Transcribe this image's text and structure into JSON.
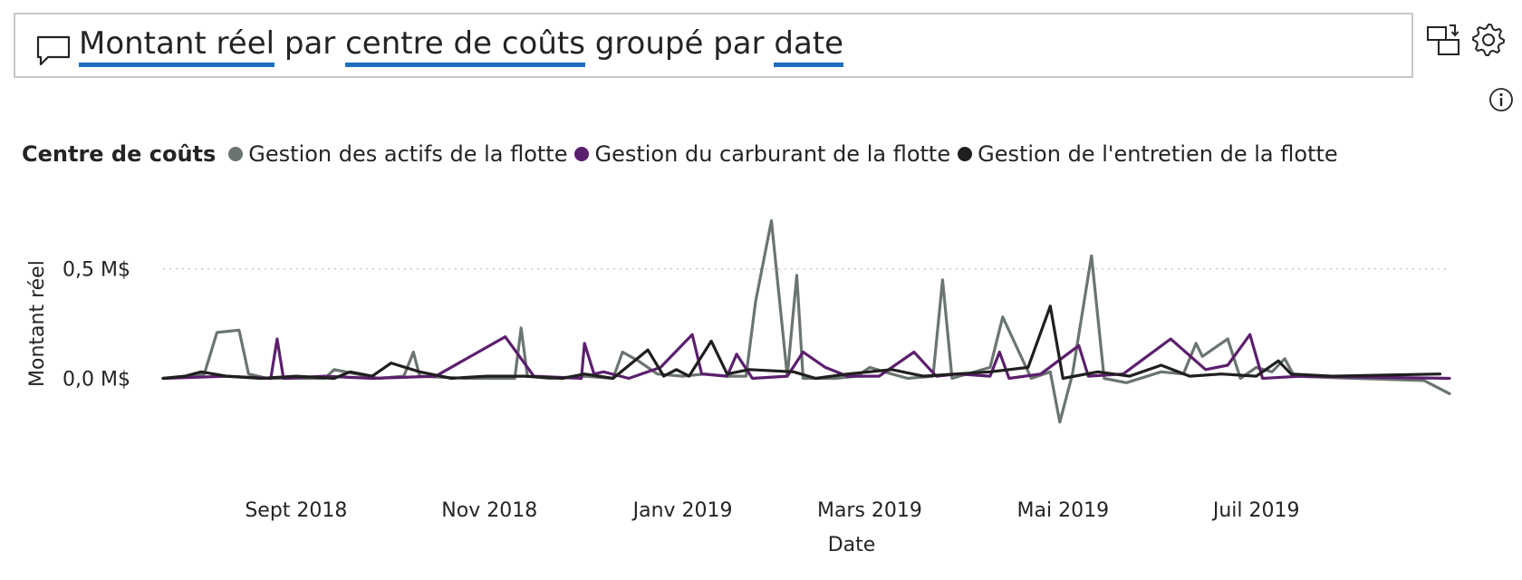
{
  "qa": {
    "segments": [
      {
        "text": "Montant réel",
        "keyword": true
      },
      {
        "text": " par ",
        "keyword": false
      },
      {
        "text": "centre de coûts",
        "keyword": true
      },
      {
        "text": " groupé par ",
        "keyword": false
      },
      {
        "text": "date",
        "keyword": true
      }
    ]
  },
  "icons": {
    "question": "speech-bubble-icon",
    "convert": "convert-visual-icon",
    "settings": "gear-icon",
    "info": "info-icon"
  },
  "colors": {
    "keyword_underline": "#1f6fbf",
    "series": [
      "#6b7570",
      "#5c1f6e",
      "#201f1f"
    ]
  },
  "legend": {
    "title": "Centre de coûts"
  },
  "chart_data": {
    "type": "line",
    "title": "",
    "xlabel": "Date",
    "ylabel": "Montant réel",
    "y_unit": "M$",
    "ylim": [
      -0.3,
      0.9
    ],
    "xlim": [
      "2018-07-21",
      "2019-08-31"
    ],
    "y_ticks": [
      {
        "value": 0.0,
        "label": "0,0 M$"
      },
      {
        "value": 0.5,
        "label": "0,5 M$"
      }
    ],
    "x_ticks": [
      {
        "value": "2018-09-01",
        "label": "Sept 2018"
      },
      {
        "value": "2018-11-01",
        "label": "Nov 2018"
      },
      {
        "value": "2019-01-01",
        "label": "Janv 2019"
      },
      {
        "value": "2019-03-01",
        "label": "Mars 2019"
      },
      {
        "value": "2019-05-01",
        "label": "Mai 2019"
      },
      {
        "value": "2019-07-01",
        "label": "Juil 2019"
      }
    ],
    "grid": "horizontal-dotted",
    "legend_position": "top-left",
    "series": [
      {
        "name": "Gestion des actifs de la flotte",
        "points": [
          [
            "2018-07-21",
            0.0
          ],
          [
            "2018-07-28",
            0.01
          ],
          [
            "2018-08-03",
            0.02
          ],
          [
            "2018-08-07",
            0.21
          ],
          [
            "2018-08-14",
            0.22
          ],
          [
            "2018-08-17",
            0.02
          ],
          [
            "2018-08-23",
            0.0
          ],
          [
            "2018-09-04",
            0.0
          ],
          [
            "2018-09-10",
            0.0
          ],
          [
            "2018-09-13",
            0.04
          ],
          [
            "2018-09-20",
            0.02
          ],
          [
            "2018-09-27",
            0.0
          ],
          [
            "2018-10-05",
            0.01
          ],
          [
            "2018-10-08",
            0.12
          ],
          [
            "2018-10-10",
            0.01
          ],
          [
            "2018-10-25",
            0.0
          ],
          [
            "2018-11-04",
            0.0
          ],
          [
            "2018-11-09",
            0.0
          ],
          [
            "2018-11-11",
            0.23
          ],
          [
            "2018-11-13",
            0.01
          ],
          [
            "2018-11-20",
            0.0
          ],
          [
            "2018-12-01",
            0.01
          ],
          [
            "2018-12-10",
            0.0
          ],
          [
            "2018-12-13",
            0.12
          ],
          [
            "2018-12-18",
            0.08
          ],
          [
            "2018-12-24",
            0.02
          ],
          [
            "2019-01-01",
            0.01
          ],
          [
            "2019-01-08",
            0.02
          ],
          [
            "2019-01-15",
            0.01
          ],
          [
            "2019-01-21",
            0.01
          ],
          [
            "2019-01-24",
            0.35
          ],
          [
            "2019-01-29",
            0.72
          ],
          [
            "2019-02-03",
            0.01
          ],
          [
            "2019-02-06",
            0.47
          ],
          [
            "2019-02-08",
            0.0
          ],
          [
            "2019-02-18",
            0.0
          ],
          [
            "2019-02-25",
            0.01
          ],
          [
            "2019-03-01",
            0.05
          ],
          [
            "2019-03-08",
            0.02
          ],
          [
            "2019-03-13",
            0.0
          ],
          [
            "2019-03-21",
            0.01
          ],
          [
            "2019-03-24",
            0.45
          ],
          [
            "2019-03-27",
            0.0
          ],
          [
            "2019-04-08",
            0.05
          ],
          [
            "2019-04-12",
            0.28
          ],
          [
            "2019-04-21",
            0.0
          ],
          [
            "2019-04-27",
            0.03
          ],
          [
            "2019-04-30",
            -0.2
          ],
          [
            "2019-05-04",
            0.02
          ],
          [
            "2019-05-10",
            0.56
          ],
          [
            "2019-05-14",
            0.0
          ],
          [
            "2019-05-21",
            -0.02
          ],
          [
            "2019-06-01",
            0.03
          ],
          [
            "2019-06-08",
            0.02
          ],
          [
            "2019-06-12",
            0.16
          ],
          [
            "2019-06-14",
            0.1
          ],
          [
            "2019-06-22",
            0.18
          ],
          [
            "2019-06-26",
            0.0
          ],
          [
            "2019-07-01",
            0.05
          ],
          [
            "2019-07-06",
            0.03
          ],
          [
            "2019-07-10",
            0.09
          ],
          [
            "2019-07-13",
            0.01
          ],
          [
            "2019-08-01",
            0.0
          ],
          [
            "2019-08-23",
            -0.01
          ],
          [
            "2019-08-31",
            -0.07
          ]
        ]
      },
      {
        "name": "Gestion du carburant de la flotte",
        "points": [
          [
            "2018-07-21",
            0.0
          ],
          [
            "2018-08-10",
            0.01
          ],
          [
            "2018-08-24",
            0.0
          ],
          [
            "2018-08-26",
            0.18
          ],
          [
            "2018-08-28",
            0.0
          ],
          [
            "2018-09-10",
            0.01
          ],
          [
            "2018-09-25",
            0.0
          ],
          [
            "2018-10-15",
            0.01
          ],
          [
            "2018-11-06",
            0.19
          ],
          [
            "2018-11-15",
            0.01
          ],
          [
            "2018-11-30",
            0.0
          ],
          [
            "2018-12-01",
            0.16
          ],
          [
            "2018-12-04",
            0.02
          ],
          [
            "2018-12-07",
            0.03
          ],
          [
            "2018-12-15",
            0.0
          ],
          [
            "2018-12-25",
            0.05
          ],
          [
            "2019-01-04",
            0.2
          ],
          [
            "2019-01-07",
            0.02
          ],
          [
            "2019-01-15",
            0.01
          ],
          [
            "2019-01-18",
            0.11
          ],
          [
            "2019-01-23",
            0.0
          ],
          [
            "2019-02-03",
            0.01
          ],
          [
            "2019-02-08",
            0.12
          ],
          [
            "2019-02-15",
            0.05
          ],
          [
            "2019-02-22",
            0.01
          ],
          [
            "2019-03-04",
            0.01
          ],
          [
            "2019-03-15",
            0.12
          ],
          [
            "2019-03-22",
            0.01
          ],
          [
            "2019-03-29",
            0.02
          ],
          [
            "2019-04-08",
            0.01
          ],
          [
            "2019-04-11",
            0.12
          ],
          [
            "2019-04-14",
            0.0
          ],
          [
            "2019-04-24",
            0.02
          ],
          [
            "2019-05-06",
            0.15
          ],
          [
            "2019-05-09",
            0.01
          ],
          [
            "2019-05-20",
            0.02
          ],
          [
            "2019-06-04",
            0.18
          ],
          [
            "2019-06-15",
            0.04
          ],
          [
            "2019-06-22",
            0.06
          ],
          [
            "2019-06-29",
            0.2
          ],
          [
            "2019-07-03",
            0.0
          ],
          [
            "2019-07-15",
            0.01
          ],
          [
            "2019-08-31",
            0.0
          ]
        ]
      },
      {
        "name": "Gestion de l'entretien de la flotte",
        "points": [
          [
            "2018-07-21",
            0.0
          ],
          [
            "2018-07-28",
            0.01
          ],
          [
            "2018-08-02",
            0.03
          ],
          [
            "2018-08-10",
            0.01
          ],
          [
            "2018-08-21",
            0.0
          ],
          [
            "2018-09-01",
            0.01
          ],
          [
            "2018-09-13",
            0.0
          ],
          [
            "2018-09-18",
            0.03
          ],
          [
            "2018-09-25",
            0.01
          ],
          [
            "2018-10-01",
            0.07
          ],
          [
            "2018-10-10",
            0.03
          ],
          [
            "2018-10-20",
            0.0
          ],
          [
            "2018-10-31",
            0.01
          ],
          [
            "2018-11-12",
            0.01
          ],
          [
            "2018-11-24",
            0.0
          ],
          [
            "2018-12-01",
            0.02
          ],
          [
            "2018-12-10",
            0.0
          ],
          [
            "2018-12-21",
            0.13
          ],
          [
            "2018-12-26",
            0.01
          ],
          [
            "2018-12-30",
            0.04
          ],
          [
            "2019-01-03",
            0.01
          ],
          [
            "2019-01-10",
            0.17
          ],
          [
            "2019-01-15",
            0.02
          ],
          [
            "2019-01-22",
            0.04
          ],
          [
            "2019-02-05",
            0.03
          ],
          [
            "2019-02-12",
            0.0
          ],
          [
            "2019-02-22",
            0.02
          ],
          [
            "2019-03-08",
            0.04
          ],
          [
            "2019-03-18",
            0.01
          ],
          [
            "2019-03-28",
            0.02
          ],
          [
            "2019-04-08",
            0.03
          ],
          [
            "2019-04-20",
            0.05
          ],
          [
            "2019-04-27",
            0.33
          ],
          [
            "2019-05-01",
            0.0
          ],
          [
            "2019-05-12",
            0.03
          ],
          [
            "2019-05-22",
            0.01
          ],
          [
            "2019-06-01",
            0.06
          ],
          [
            "2019-06-10",
            0.01
          ],
          [
            "2019-06-20",
            0.02
          ],
          [
            "2019-07-01",
            0.01
          ],
          [
            "2019-07-08",
            0.08
          ],
          [
            "2019-07-12",
            0.02
          ],
          [
            "2019-07-25",
            0.01
          ],
          [
            "2019-08-28",
            0.02
          ]
        ]
      }
    ]
  }
}
